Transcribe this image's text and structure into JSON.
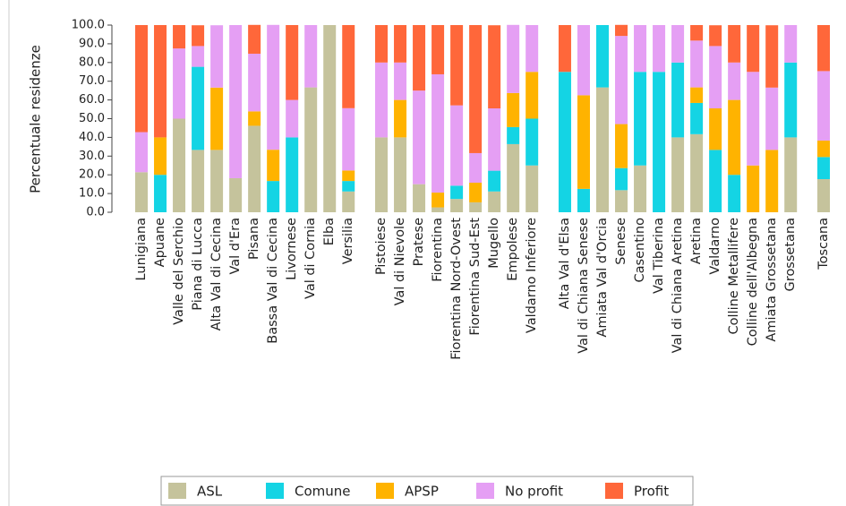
{
  "chart_data": {
    "type": "stacked_bar",
    "y_label": "Percentuale residenze",
    "categories": [
      "Lunigiana",
      "Apuane",
      "Valle del Serchio",
      "Piana di Lucca",
      "Alta Val di Cecina",
      "Val d'Era",
      "Pisana",
      "Bassa Val di Cecina",
      "Livornese",
      "Val di Cornia",
      "Elba",
      "Versilia",
      null,
      "Pistoiese",
      "Val di Nievole",
      "Pratese",
      "Fiorentina",
      "Fiorentina Nord-Ovest",
      "Fiorentina Sud-Est",
      "Mugello",
      "Empolese",
      "Valdarno Inferiore",
      null,
      "Alta Val d'Elsa",
      "Val di Chiana Senese",
      "Amiata Val d'Orcia",
      "Senese",
      "Casentino",
      "Val Tiberina",
      "Val di Chiana Aretina",
      "Aretina",
      "Valdarno",
      "Colline Metallifere",
      "Colline dell'Albegna",
      "Amiata Grossetana",
      "Grossetana",
      null,
      "Toscana"
    ],
    "series": [
      {
        "name": "ASL",
        "color": "#c5c39c",
        "values": [
          21.4,
          0,
          50,
          33.3,
          33.3,
          18.2,
          46.2,
          0,
          0,
          66.7,
          100,
          11.1,
          null,
          40,
          40,
          15,
          2.6,
          7.1,
          5.3,
          11.1,
          36.4,
          25,
          null,
          0,
          0,
          66.7,
          11.8,
          25,
          0,
          40,
          41.7,
          0,
          0,
          0,
          0,
          40,
          null,
          17.7
        ]
      },
      {
        "name": "Comune",
        "color": "#14d4e4",
        "values": [
          0,
          20,
          0,
          44.4,
          0,
          0,
          0,
          16.7,
          40,
          0,
          0,
          5.6,
          null,
          0,
          0,
          0,
          0,
          7.1,
          0,
          11.1,
          9.1,
          25,
          null,
          75,
          12.5,
          33.3,
          11.8,
          50,
          75,
          40,
          16.7,
          33.3,
          20,
          0,
          0,
          40,
          null,
          11.8
        ]
      },
      {
        "name": "APSP",
        "color": "#ffb300",
        "values": [
          0,
          20,
          0,
          0,
          33.3,
          0,
          7.7,
          16.7,
          0,
          0,
          0,
          5.6,
          null,
          0,
          20,
          0,
          7.9,
          0,
          10.5,
          0,
          18.2,
          25,
          null,
          0,
          50,
          0,
          23.5,
          0,
          0,
          0,
          8.3,
          22.2,
          40,
          25,
          33.3,
          0,
          null,
          8.8
        ]
      },
      {
        "name": "No profit",
        "color": "#e59ff4",
        "values": [
          21.4,
          0,
          37.5,
          11.1,
          33.3,
          81.8,
          30.8,
          66.7,
          20,
          33.3,
          0,
          33.3,
          null,
          40,
          20,
          50,
          63.2,
          42.9,
          15.8,
          33.3,
          36.4,
          25,
          null,
          0,
          37.5,
          0,
          47.1,
          25,
          25,
          20,
          25,
          33.3,
          20,
          50,
          33.3,
          20,
          null,
          37.1
        ]
      },
      {
        "name": "Profit",
        "color": "#ff673a",
        "values": [
          57.2,
          60,
          12.5,
          11.1,
          0,
          0,
          15.4,
          0,
          40,
          0,
          0,
          44.4,
          null,
          20,
          20,
          35,
          26.3,
          42.9,
          68.4,
          44.4,
          0,
          0,
          null,
          25,
          0,
          0,
          5.9,
          0,
          0,
          0,
          8.3,
          11.1,
          20,
          25,
          33.3,
          0,
          null,
          24.6
        ]
      }
    ],
    "ylim": [
      0,
      100
    ],
    "yticks": [
      {
        "value": 0,
        "label": "0.0"
      },
      {
        "value": 10,
        "label": "10.0"
      },
      {
        "value": 20,
        "label": "20.0"
      },
      {
        "value": 30,
        "label": "30.0"
      },
      {
        "value": 40,
        "label": "40.0"
      },
      {
        "value": 50,
        "label": "50.0"
      },
      {
        "value": 60,
        "label": "60.0"
      },
      {
        "value": 70,
        "label": "70.0"
      },
      {
        "value": 80,
        "label": "80.0"
      },
      {
        "value": 90,
        "label": "90.0"
      },
      {
        "value": 100,
        "label": "100.0"
      }
    ],
    "legend": "bottom"
  }
}
